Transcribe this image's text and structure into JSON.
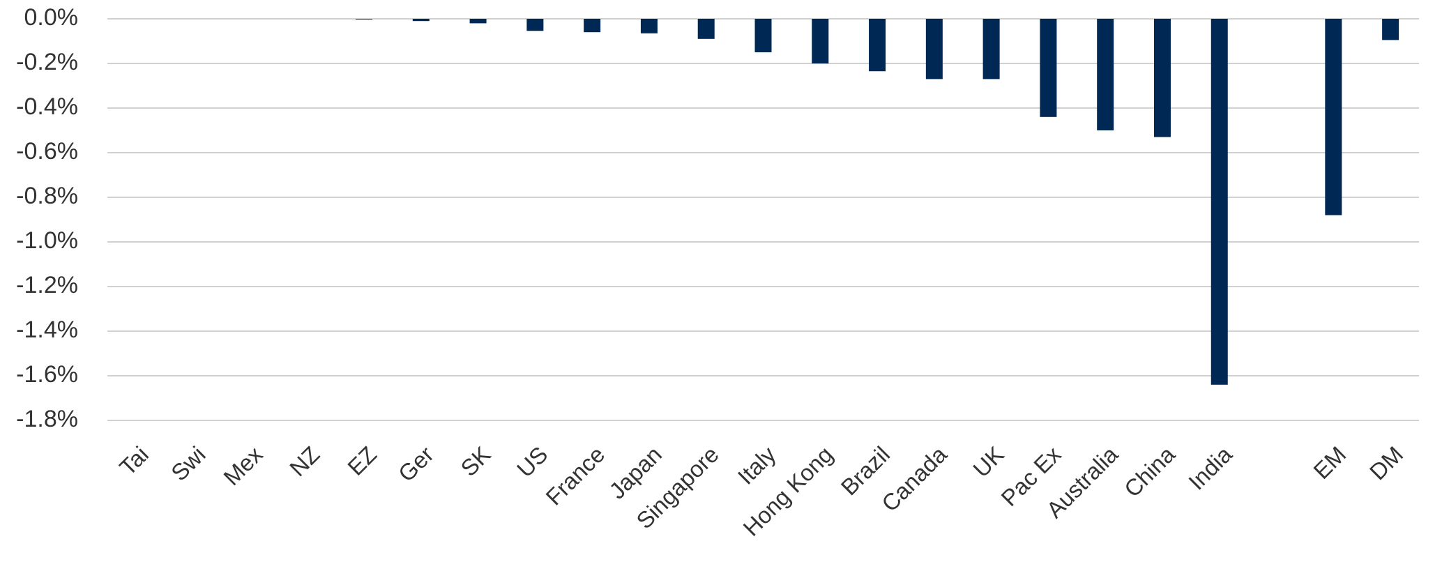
{
  "chart_data": {
    "type": "bar",
    "categories": [
      "Tai",
      "Swi",
      "Mex",
      "NZ",
      "EZ",
      "Ger",
      "SK",
      "US",
      "France",
      "Japan",
      "Singapore",
      "Italy",
      "Hong Kong",
      "Brazil",
      "Canada",
      "UK",
      "Pac Ex",
      "Australia",
      "China",
      "India",
      null,
      "EM",
      "DM"
    ],
    "values": [
      0,
      0,
      0,
      0,
      -0.003,
      -0.01,
      -0.02,
      -0.054,
      -0.06,
      -0.065,
      -0.09,
      -0.15,
      -0.2,
      -0.235,
      -0.27,
      -0.27,
      -0.44,
      -0.5,
      -0.53,
      -1.64,
      null,
      -0.88,
      -0.095
    ],
    "color": "#002855",
    "ylim": [
      -1.8,
      0
    ],
    "yticks": [
      {
        "value": 0,
        "label": "0.0%"
      },
      {
        "value": -0.2,
        "label": "-0.2%"
      },
      {
        "value": -0.4,
        "label": "-0.4%"
      },
      {
        "value": -0.6,
        "label": "-0.6%"
      },
      {
        "value": -0.8,
        "label": "-0.8%"
      },
      {
        "value": -1.0,
        "label": "-1.0%"
      },
      {
        "value": -1.2,
        "label": "-1.2%"
      },
      {
        "value": -1.4,
        "label": "-1.4%"
      },
      {
        "value": -1.6,
        "label": "-1.6%"
      },
      {
        "value": -1.8,
        "label": "-1.8%"
      }
    ],
    "grid": true
  }
}
